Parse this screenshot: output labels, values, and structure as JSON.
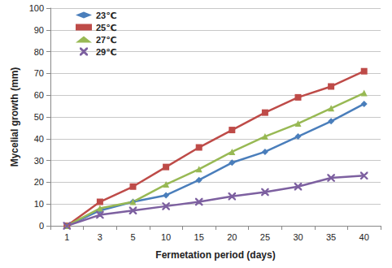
{
  "chart_data": {
    "type": "line",
    "x_label": "Fermetation period (days)",
    "y_label": "Mycelial growth (mm)",
    "categories": [
      "1",
      "3",
      "5",
      "10",
      "15",
      "20",
      "25",
      "30",
      "35",
      "40"
    ],
    "series": [
      {
        "name": "23℃",
        "color": "#4a7ebb",
        "marker": "diamond",
        "values": [
          0,
          7,
          11,
          14,
          21,
          29,
          34,
          41,
          48,
          56
        ]
      },
      {
        "name": "25℃",
        "color": "#be4b48",
        "marker": "square",
        "values": [
          0,
          11,
          18,
          27,
          36,
          44,
          52,
          59,
          64,
          71
        ]
      },
      {
        "name": "27℃",
        "color": "#98b954",
        "marker": "triangle",
        "values": [
          0,
          8,
          11,
          19,
          26,
          34,
          41,
          47,
          54,
          61
        ]
      },
      {
        "name": "29℃",
        "color": "#7d60a0",
        "marker": "x",
        "values": [
          0,
          5,
          7,
          9,
          11,
          13.5,
          15.5,
          18,
          22,
          23
        ]
      }
    ],
    "ylim": [
      0,
      100
    ],
    "yticks": [
      0,
      10,
      20,
      30,
      40,
      50,
      60,
      70,
      80,
      90,
      100
    ],
    "grid": true,
    "legend": "upper left"
  }
}
